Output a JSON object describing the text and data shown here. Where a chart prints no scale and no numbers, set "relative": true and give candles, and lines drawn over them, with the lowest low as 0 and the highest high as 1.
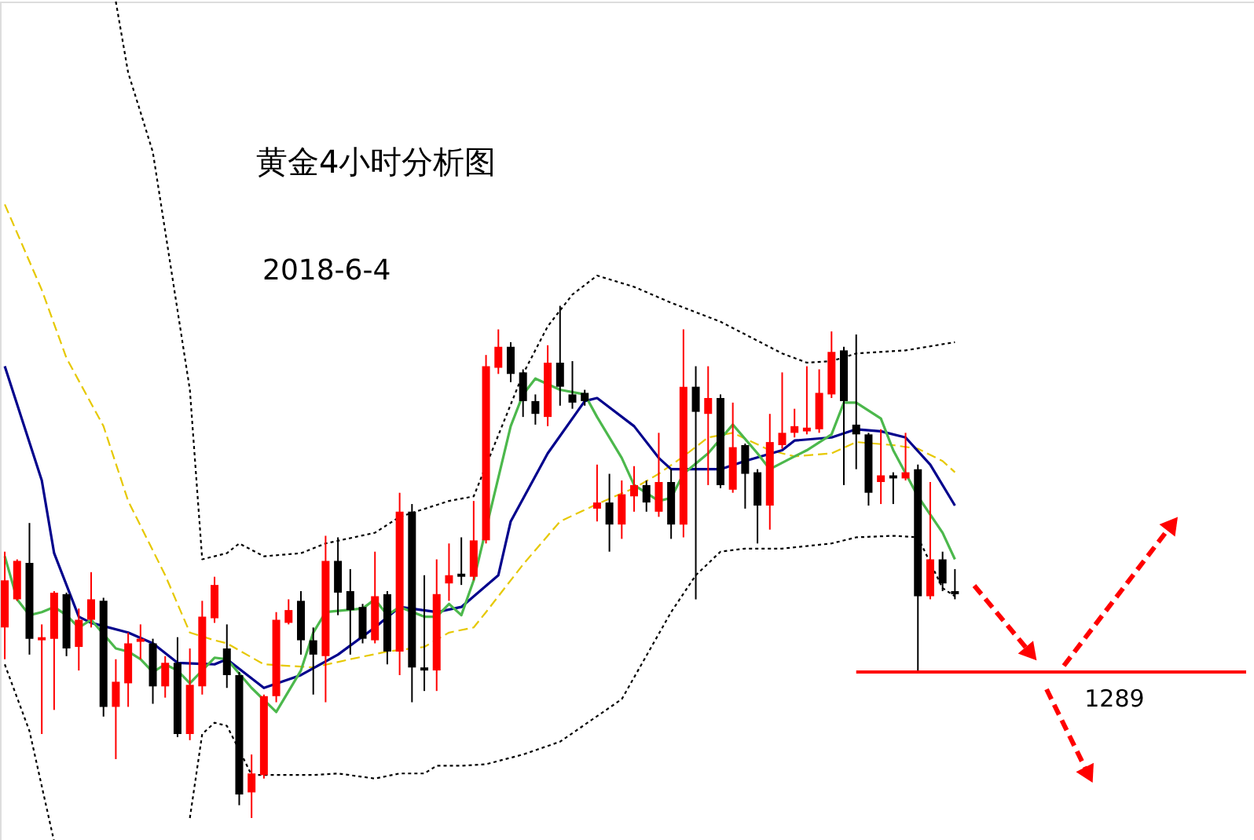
{
  "chart_data": {
    "type": "candlestick",
    "title": "黄金4小时分析图",
    "subtitle": "2018-6-4",
    "relative": true,
    "categories": [
      null,
      null,
      null,
      null,
      null,
      null,
      null,
      null,
      null,
      null,
      null,
      null,
      null,
      null,
      null,
      null,
      null,
      null,
      null,
      null,
      null,
      null,
      null,
      null,
      null,
      null,
      null,
      null,
      null,
      null,
      null,
      null,
      null,
      null,
      null,
      null,
      null,
      null,
      null,
      null,
      null,
      null,
      null,
      null,
      null,
      null,
      null,
      null,
      null,
      null,
      null,
      null,
      null,
      null,
      null,
      null,
      null,
      null,
      null,
      null,
      null,
      null,
      null,
      null,
      null,
      null,
      null,
      null,
      null,
      null,
      null,
      null,
      null,
      null,
      null,
      null,
      null,
      null
    ],
    "ohlc": [
      [
        0.372,
        0.52,
        0.31,
        0.464
      ],
      [
        0.427,
        0.505,
        0.424,
        0.502
      ],
      [
        0.498,
        0.576,
        0.319,
        0.35
      ],
      [
        0.347,
        0.378,
        0.164,
        0.353
      ],
      [
        0.35,
        0.443,
        0.211,
        0.44
      ],
      [
        0.437,
        0.44,
        0.316,
        0.331
      ],
      [
        0.334,
        0.409,
        0.288,
        0.387
      ],
      [
        0.387,
        0.48,
        0.372,
        0.427
      ],
      [
        0.424,
        0.43,
        0.198,
        0.217
      ],
      [
        0.217,
        0.31,
        0.115,
        0.266
      ],
      [
        0.263,
        0.362,
        0.217,
        0.341
      ],
      [
        0.344,
        0.378,
        0.31,
        0.35
      ],
      [
        0.341,
        0.35,
        0.223,
        0.257
      ],
      [
        0.257,
        0.316,
        0.235,
        0.303
      ],
      [
        0.303,
        0.353,
        0.158,
        0.164
      ],
      [
        0.164,
        0.331,
        0.152,
        0.26
      ],
      [
        0.257,
        0.424,
        0.241,
        0.393
      ],
      [
        0.39,
        0.471,
        0.381,
        0.455
      ],
      [
        0.331,
        0.378,
        0.254,
        0.279
      ],
      [
        0.279,
        0.285,
        0.025,
        0.046
      ],
      [
        0.05,
        0.124,
        0.0,
        0.087
      ],
      [
        0.084,
        0.241,
        0.077,
        0.238
      ],
      [
        0.238,
        0.402,
        0.226,
        0.387
      ],
      [
        0.381,
        0.427,
        0.378,
        0.406
      ],
      [
        0.424,
        0.443,
        0.319,
        0.347
      ],
      [
        0.347,
        0.372,
        0.241,
        0.319
      ],
      [
        0.316,
        0.551,
        0.226,
        0.502
      ],
      [
        0.502,
        0.548,
        0.396,
        0.44
      ],
      [
        0.443,
        0.486,
        0.319,
        0.406
      ],
      [
        0.412,
        0.418,
        0.341,
        0.35
      ],
      [
        0.347,
        0.52,
        0.341,
        0.433
      ],
      [
        0.437,
        0.443,
        0.3,
        0.325
      ],
      [
        0.325,
        0.635,
        0.279,
        0.598
      ],
      [
        0.598,
        0.613,
        0.226,
        0.294
      ],
      [
        0.294,
        0.474,
        0.248,
        0.288
      ],
      [
        0.288,
        0.505,
        0.248,
        0.437
      ],
      [
        0.458,
        0.536,
        0.424,
        0.474
      ],
      [
        0.477,
        0.548,
        0.455,
        0.471
      ],
      [
        0.471,
        0.619,
        0.464,
        0.542
      ],
      [
        0.542,
        0.904,
        0.536,
        0.882
      ],
      [
        0.879,
        0.954,
        0.867,
        0.92
      ],
      [
        0.92,
        0.929,
        0.851,
        0.867
      ],
      [
        0.87,
        0.876,
        0.783,
        0.814
      ],
      [
        0.814,
        0.827,
        0.768,
        0.789
      ],
      [
        0.783,
        0.923,
        0.765,
        0.889
      ],
      [
        0.889,
        1.0,
        0.805,
        0.842
      ],
      [
        0.827,
        0.892,
        0.799,
        0.811
      ],
      [
        0.83,
        0.836,
        0.805,
        0.814
      ],
      [
        0.604,
        0.69,
        0.579,
        0.616
      ],
      [
        0.616,
        0.672,
        0.52,
        0.573
      ],
      [
        0.573,
        0.659,
        0.545,
        0.632
      ],
      [
        0.628,
        0.687,
        0.598,
        0.65
      ],
      [
        0.65,
        0.659,
        0.598,
        0.616
      ],
      [
        0.598,
        0.752,
        0.588,
        0.656
      ],
      [
        0.656,
        0.681,
        0.545,
        0.573
      ],
      [
        0.573,
        0.954,
        0.548,
        0.842
      ],
      [
        0.842,
        0.882,
        0.427,
        0.793
      ],
      [
        0.789,
        0.882,
        0.65,
        0.82
      ],
      [
        0.82,
        0.827,
        0.644,
        0.65
      ],
      [
        0.641,
        0.811,
        0.635,
        0.724
      ],
      [
        0.728,
        0.731,
        0.604,
        0.672
      ],
      [
        0.675,
        0.681,
        0.536,
        0.61
      ],
      [
        0.61,
        0.789,
        0.563,
        0.734
      ],
      [
        0.728,
        0.87,
        0.721,
        0.752
      ],
      [
        0.752,
        0.799,
        0.743,
        0.765
      ],
      [
        0.755,
        0.882,
        0.749,
        0.762
      ],
      [
        0.759,
        0.876,
        0.752,
        0.83
      ],
      [
        0.827,
        0.95,
        0.82,
        0.91
      ],
      [
        0.913,
        0.92,
        0.65,
        0.814
      ],
      [
        0.768,
        0.944,
        0.681,
        0.749
      ],
      [
        0.749,
        0.752,
        0.61,
        0.635
      ],
      [
        0.656,
        0.759,
        0.613,
        0.669
      ],
      [
        0.669,
        0.675,
        0.613,
        0.663
      ],
      [
        0.663,
        0.752,
        0.659,
        0.675
      ],
      [
        0.681,
        0.69,
        0.285,
        0.433
      ],
      [
        0.433,
        0.656,
        0.427,
        0.505
      ],
      [
        0.505,
        0.52,
        0.443,
        0.458
      ],
      [
        0.443,
        0.486,
        0.427,
        0.437
      ]
    ],
    "colors": [
      "#ff0000",
      "#ff0000",
      "#000000",
      "#ff0000",
      "#ff0000",
      "#000000",
      "#ff0000",
      "#ff0000",
      "#000000",
      "#ff0000",
      "#ff0000",
      "#ff0000",
      "#000000",
      "#ff0000",
      "#000000",
      "#ff0000",
      "#ff0000",
      "#ff0000",
      "#000000",
      "#000000",
      "#ff0000",
      "#ff0000",
      "#ff0000",
      "#ff0000",
      "#000000",
      "#000000",
      "#ff0000",
      "#000000",
      "#000000",
      "#000000",
      "#ff0000",
      "#000000",
      "#ff0000",
      "#000000",
      "#000000",
      "#ff0000",
      "#ff0000",
      "#000000",
      "#ff0000",
      "#ff0000",
      "#ff0000",
      "#000000",
      "#000000",
      "#000000",
      "#ff0000",
      "#000000",
      "#000000",
      "#000000",
      "#ff0000",
      "#000000",
      "#ff0000",
      "#ff0000",
      "#000000",
      "#ff0000",
      "#000000",
      "#ff0000",
      "#000000",
      "#ff0000",
      "#000000",
      "#ff0000",
      "#000000",
      "#000000",
      "#ff0000",
      "#ff0000",
      "#ff0000",
      "#ff0000",
      "#ff0000",
      "#ff0000",
      "#000000",
      "#000000",
      "#000000",
      "#ff0000",
      "#000000",
      "#ff0000",
      "#000000",
      "#ff0000",
      "#000000",
      "#000000"
    ],
    "series": [
      {
        "type": "line",
        "color": "#000000",
        "line_style": "dotted",
        "values": [
          null,
          null,
          null,
          null,
          null,
          null,
          null,
          null,
          null,
          1.594,
          1.455,
          1.378,
          1.3,
          1.146,
          0.991,
          0.836,
          0.505,
          null,
          0.517,
          0.536,
          null,
          0.511,
          null,
          null,
          0.517,
          null,
          0.536,
          null,
          null,
          null,
          0.557,
          null,
          0.588,
          null,
          null,
          null,
          0.619,
          null,
          0.628,
          null,
          null,
          null,
          0.867,
          null,
          0.96,
          null,
          1.022,
          null,
          1.059,
          null,
          null,
          1.037,
          null,
          null,
          1.006,
          null,
          null,
          null,
          0.969,
          null,
          null,
          null,
          null,
          0.907,
          null,
          0.889,
          null,
          0.892,
          null,
          0.907,
          null,
          null,
          null,
          0.913,
          null,
          null,
          null,
          0.929
        ]
      },
      {
        "type": "line",
        "color": "#000000",
        "line_style": "dotted",
        "values": [
          0.3,
          null,
          0.17,
          null,
          -0.046,
          null,
          null,
          null,
          null,
          null,
          null,
          null,
          null,
          null,
          null,
          null,
          null,
          null,
          null,
          null,
          null,
          null,
          null,
          null,
          null,
          null,
          null,
          null,
          null,
          null,
          null,
          null,
          null,
          null,
          null,
          null,
          null,
          null,
          null,
          null,
          null,
          null,
          null,
          null,
          null,
          null,
          null,
          null,
          null,
          null,
          null,
          null,
          null,
          null,
          null,
          null,
          null,
          null,
          null,
          null,
          null,
          null,
          null,
          null,
          null,
          null,
          null,
          null,
          null,
          null,
          null,
          null,
          null,
          null,
          null,
          null,
          null,
          null
        ]
      },
      {
        "type": "line",
        "color": "#000000",
        "line_style": "dotted",
        "values": [
          null,
          null,
          null,
          null,
          null,
          null,
          null,
          null,
          null,
          null,
          null,
          null,
          null,
          null,
          null,
          0.0,
          0.164,
          0.186,
          0.18,
          0.133,
          0.084,
          null,
          0.084,
          null,
          null,
          0.084,
          null,
          0.087,
          null,
          null,
          0.077,
          null,
          0.087,
          null,
          0.087,
          0.102,
          null,
          0.102,
          null,
          0.105,
          null,
          null,
          0.124,
          null,
          null,
          0.149,
          null,
          null,
          null,
          null,
          0.232,
          null,
          null,
          null,
          0.402,
          null,
          0.474,
          null,
          0.52,
          null,
          0.526,
          null,
          null,
          0.526,
          null,
          null,
          null,
          0.536,
          null,
          0.548,
          null,
          null,
          0.551,
          null,
          0.548,
          null,
          0.449,
          0.433
        ]
      },
      {
        "type": "line",
        "color": "#e6c800",
        "line_style": "dashed",
        "values": [
          1.198,
          null,
          null,
          1.031,
          null,
          0.898,
          null,
          null,
          0.765,
          null,
          0.619,
          null,
          null,
          0.474,
          null,
          0.362,
          null,
          0.347,
          0.341,
          null,
          null,
          0.3,
          null,
          null,
          null,
          0.294,
          null,
          null,
          0.31,
          null,
          null,
          0.325,
          null,
          null,
          0.334,
          null,
          0.362,
          null,
          0.372,
          0.402,
          null,
          null,
          0.495,
          null,
          null,
          0.579,
          null,
          null,
          0.613,
          null,
          null,
          0.644,
          null,
          0.672,
          null,
          0.706,
          null,
          0.743,
          null,
          0.752,
          null,
          null,
          0.718,
          null,
          0.706,
          null,
          null,
          0.712,
          null,
          0.734,
          null,
          null,
          0.728,
          null,
          0.721,
          null,
          0.697,
          0.675
        ]
      },
      {
        "type": "line",
        "color": "#00008c",
        "line_style": "solid",
        "values": [
          0.882,
          null,
          null,
          0.659,
          0.517,
          null,
          0.393,
          0.381,
          null,
          null,
          0.362,
          null,
          0.341,
          null,
          0.303,
          null,
          null,
          0.3,
          0.31,
          null,
          null,
          0.254,
          null,
          null,
          0.279,
          null,
          null,
          0.319,
          null,
          null,
          0.372,
          null,
          0.412,
          null,
          null,
          0.402,
          null,
          0.412,
          null,
          null,
          0.474,
          0.579,
          null,
          null,
          0.712,
          null,
          null,
          0.814,
          0.82,
          null,
          null,
          0.765,
          null,
          0.703,
          0.681,
          null,
          null,
          null,
          0.681,
          null,
          0.697,
          null,
          null,
          0.718,
          0.737,
          null,
          null,
          0.743,
          null,
          0.759,
          null,
          0.755,
          null,
          0.743,
          null,
          0.69,
          null,
          0.61
        ]
      },
      {
        "type": "line",
        "color": "#4cb84c",
        "line_style": "solid",
        "values": [
          0.511,
          0.427,
          0.396,
          0.402,
          0.412,
          0.396,
          0.372,
          0.387,
          null,
          0.331,
          0.325,
          0.31,
          0.285,
          0.3,
          0.288,
          0.263,
          0.288,
          0.313,
          0.31,
          null,
          0.254,
          null,
          0.207,
          null,
          0.288,
          0.362,
          0.402,
          null,
          null,
          0.409,
          0.427,
          0.396,
          0.412,
          null,
          0.393,
          0.393,
          0.418,
          0.396,
          0.464,
          null,
          null,
          0.765,
          0.827,
          0.858,
          null,
          0.836,
          null,
          0.827,
          0.783,
          null,
          0.703,
          0.65,
          null,
          0.619,
          0.625,
          0.672,
          null,
          0.712,
          null,
          0.768,
          null,
          0.712,
          0.681,
          null,
          0.706,
          0.718,
          null,
          0.749,
          0.811,
          0.811,
          null,
          0.78,
          0.718,
          null,
          0.628,
          null,
          0.557,
          0.505
        ]
      }
    ],
    "ref_lines": [
      {
        "axis": "y",
        "value": 0.285,
        "color": "#ff0000",
        "line_style": "solid"
      }
    ],
    "annotations": [
      "1289"
    ]
  }
}
